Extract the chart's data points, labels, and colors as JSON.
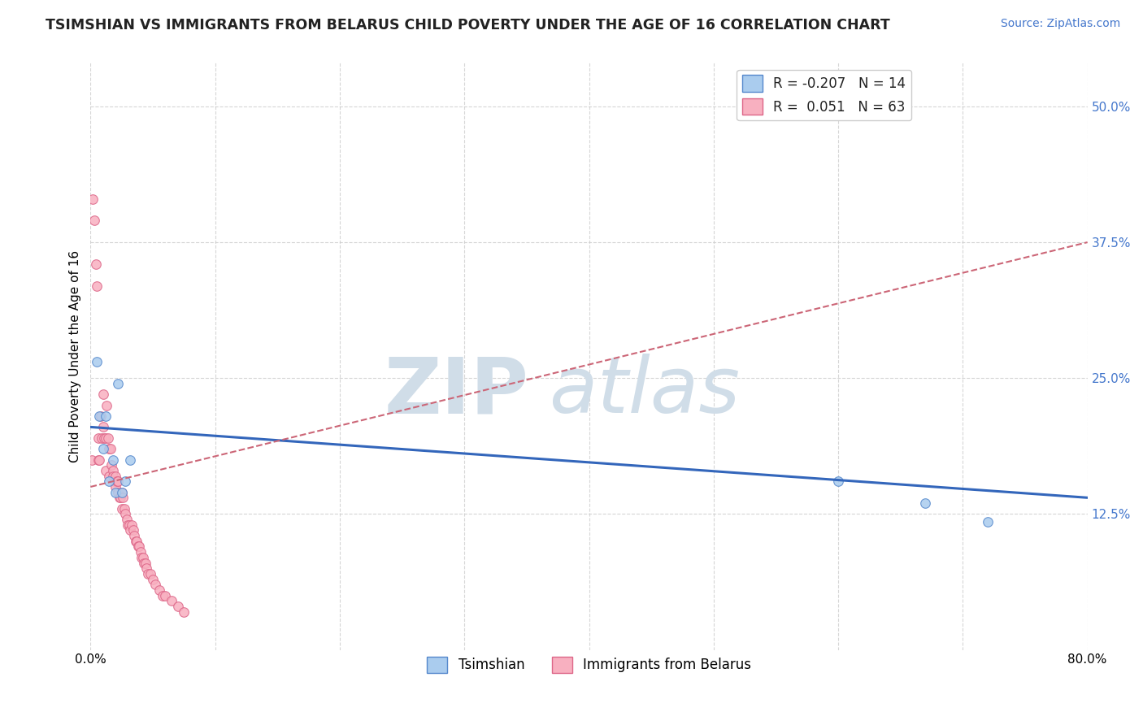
{
  "title": "TSIMSHIAN VS IMMIGRANTS FROM BELARUS CHILD POVERTY UNDER THE AGE OF 16 CORRELATION CHART",
  "source_text": "Source: ZipAtlas.com",
  "ylabel": "Child Poverty Under the Age of 16",
  "xlim": [
    0.0,
    0.8
  ],
  "ylim": [
    0.0,
    0.54
  ],
  "xticks": [
    0.0,
    0.1,
    0.2,
    0.3,
    0.4,
    0.5,
    0.6,
    0.7,
    0.8
  ],
  "ytick_positions": [
    0.125,
    0.25,
    0.375,
    0.5
  ],
  "series1_name": "Tsimshian",
  "series1_color": "#aaccee",
  "series1_edge_color": "#5588cc",
  "series1_R": -0.207,
  "series1_N": 14,
  "series2_name": "Immigrants from Belarus",
  "series2_color": "#f8b0c0",
  "series2_edge_color": "#dd6688",
  "series2_R": 0.051,
  "series2_N": 63,
  "background_color": "#ffffff",
  "grid_color": "#cccccc",
  "title_fontsize": 12.5,
  "axis_label_fontsize": 11,
  "tick_fontsize": 11,
  "legend_fontsize": 12,
  "source_fontsize": 10,
  "watermark_color": "#d0dde8",
  "line1_color": "#3366bb",
  "line2_color": "#cc6677",
  "dot_size": 70,
  "tsimshian_x": [
    0.005,
    0.007,
    0.01,
    0.012,
    0.015,
    0.018,
    0.02,
    0.022,
    0.025,
    0.028,
    0.032,
    0.6,
    0.67,
    0.72
  ],
  "tsimshian_y": [
    0.265,
    0.215,
    0.185,
    0.215,
    0.155,
    0.175,
    0.145,
    0.245,
    0.145,
    0.155,
    0.175,
    0.155,
    0.135,
    0.118
  ],
  "belarus_x": [
    0.001,
    0.002,
    0.003,
    0.004,
    0.005,
    0.006,
    0.006,
    0.007,
    0.008,
    0.009,
    0.01,
    0.01,
    0.011,
    0.012,
    0.012,
    0.013,
    0.014,
    0.015,
    0.015,
    0.016,
    0.017,
    0.018,
    0.018,
    0.019,
    0.02,
    0.02,
    0.021,
    0.022,
    0.022,
    0.023,
    0.024,
    0.025,
    0.025,
    0.026,
    0.027,
    0.028,
    0.029,
    0.03,
    0.031,
    0.032,
    0.033,
    0.034,
    0.035,
    0.036,
    0.037,
    0.038,
    0.039,
    0.04,
    0.041,
    0.042,
    0.043,
    0.044,
    0.045,
    0.046,
    0.048,
    0.05,
    0.052,
    0.055,
    0.058,
    0.06,
    0.065,
    0.07,
    0.075
  ],
  "belarus_y": [
    0.175,
    0.415,
    0.395,
    0.355,
    0.335,
    0.195,
    0.175,
    0.175,
    0.215,
    0.195,
    0.235,
    0.205,
    0.195,
    0.195,
    0.165,
    0.225,
    0.195,
    0.185,
    0.16,
    0.185,
    0.17,
    0.165,
    0.16,
    0.155,
    0.16,
    0.15,
    0.155,
    0.145,
    0.155,
    0.14,
    0.14,
    0.145,
    0.13,
    0.14,
    0.13,
    0.125,
    0.12,
    0.115,
    0.115,
    0.11,
    0.115,
    0.11,
    0.105,
    0.1,
    0.1,
    0.095,
    0.095,
    0.09,
    0.085,
    0.085,
    0.08,
    0.08,
    0.075,
    0.07,
    0.07,
    0.065,
    0.06,
    0.055,
    0.05,
    0.05,
    0.045,
    0.04,
    0.035
  ],
  "trend1_x0": 0.0,
  "trend1_x1": 0.8,
  "trend1_y0": 0.205,
  "trend1_y1": 0.14,
  "trend2_x0": 0.0,
  "trend2_x1": 0.8,
  "trend2_y0": 0.15,
  "trend2_y1": 0.375
}
